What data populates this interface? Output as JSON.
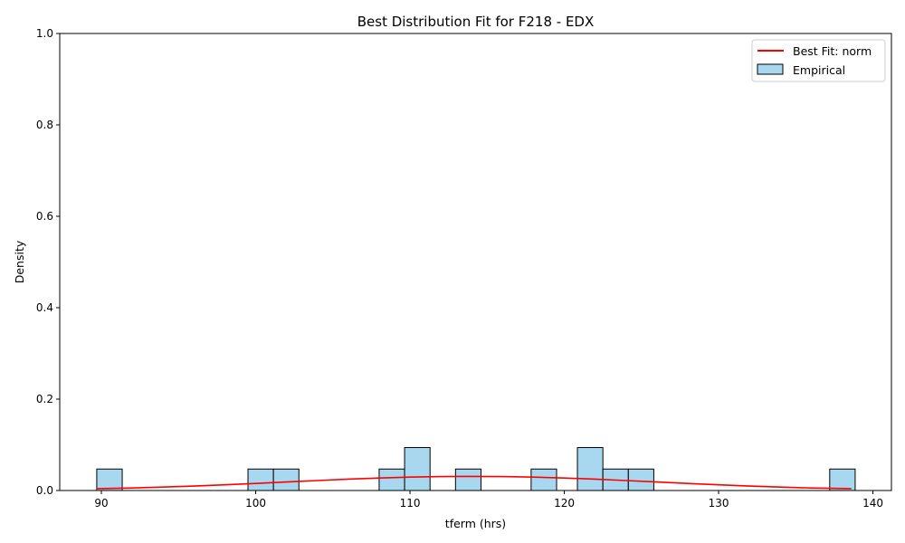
{
  "chart_data": {
    "type": "bar",
    "title": "Best Distribution Fit for F218 - EDX",
    "xlabel": "tferm (hrs)",
    "ylabel": "Density",
    "xlim": [
      87.3,
      141.2
    ],
    "ylim": [
      0,
      1.0
    ],
    "x_ticks": [
      "90",
      "100",
      "110",
      "120",
      "130",
      "140"
    ],
    "x_tick_values": [
      90,
      100,
      110,
      120,
      130,
      140
    ],
    "y_ticks": [
      "0.0",
      "0.2",
      "0.4",
      "0.6",
      "0.8",
      "1.0"
    ],
    "y_tick_values": [
      0.0,
      0.2,
      0.4,
      0.6,
      0.8,
      1.0
    ],
    "legend_position": "top-right",
    "grid": false,
    "legend": [
      {
        "label": "Best Fit: norm",
        "kind": "line",
        "color": "#ff0000"
      },
      {
        "label": "Empirical",
        "kind": "patch",
        "color": "#a7d8f0",
        "edge": "#000000"
      }
    ],
    "histogram": {
      "name": "Empirical",
      "color": "#a7d8f0",
      "edge_color": "#000000",
      "bins": [
        {
          "start": 89.7,
          "end": 91.35,
          "density": 0.047
        },
        {
          "start": 99.5,
          "end": 101.15,
          "density": 0.047
        },
        {
          "start": 101.15,
          "end": 102.8,
          "density": 0.047
        },
        {
          "start": 108.0,
          "end": 109.65,
          "density": 0.047
        },
        {
          "start": 109.65,
          "end": 111.3,
          "density": 0.094
        },
        {
          "start": 112.95,
          "end": 114.6,
          "density": 0.047
        },
        {
          "start": 117.85,
          "end": 119.5,
          "density": 0.047
        },
        {
          "start": 120.85,
          "end": 122.5,
          "density": 0.094
        },
        {
          "start": 122.5,
          "end": 124.15,
          "density": 0.047
        },
        {
          "start": 124.15,
          "end": 125.8,
          "density": 0.047
        },
        {
          "start": 137.2,
          "end": 138.85,
          "density": 0.047
        }
      ]
    },
    "fit": {
      "name": "Best Fit: norm",
      "distribution": "norm",
      "color": "#ff0000",
      "x": [
        89.7,
        92,
        94,
        96,
        98,
        100,
        102,
        104,
        106,
        108,
        110,
        112,
        114,
        116,
        118,
        120,
        122,
        124,
        126,
        128,
        130,
        132,
        134,
        136,
        138.6
      ],
      "y": [
        0.004,
        0.0055,
        0.0075,
        0.0098,
        0.0125,
        0.0155,
        0.0187,
        0.0218,
        0.0248,
        0.0274,
        0.0293,
        0.0305,
        0.0309,
        0.0305,
        0.0293,
        0.0274,
        0.0248,
        0.0218,
        0.0187,
        0.0155,
        0.0125,
        0.0098,
        0.0075,
        0.0055,
        0.004
      ]
    }
  }
}
